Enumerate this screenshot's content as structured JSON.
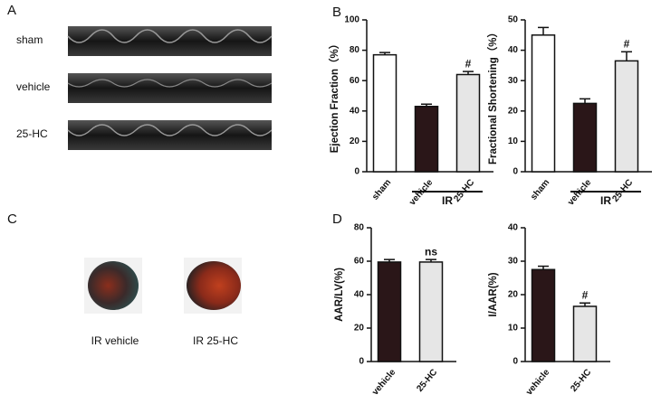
{
  "panel_labels": [
    "A",
    "B",
    "C",
    "D"
  ],
  "echo_labels": [
    "sham",
    "vehicle",
    "25-HC"
  ],
  "heart_labels": [
    "IR vehicle",
    "IR 25-HC"
  ],
  "chart_data": [
    {
      "type": "bar",
      "ylabel": "Ejection Fraction（%）",
      "categories": [
        "sham",
        "vehicle",
        "25-HC"
      ],
      "values": [
        77,
        43,
        64
      ],
      "errors": [
        1.5,
        1.5,
        2
      ],
      "colors": [
        "#ffffff",
        "#2a1618",
        "#e6e6e6"
      ],
      "ylim": [
        0,
        100
      ],
      "yticks": [
        0,
        20,
        40,
        60,
        80,
        100
      ],
      "annotations": [
        null,
        null,
        "#"
      ],
      "group_label": "IR"
    },
    {
      "type": "bar",
      "ylabel": "Fractional Shortening（%）",
      "categories": [
        "sham",
        "vehicle",
        "25-HC"
      ],
      "values": [
        45,
        22.5,
        36.5
      ],
      "errors": [
        2.5,
        1.5,
        3
      ],
      "colors": [
        "#ffffff",
        "#2a1618",
        "#e6e6e6"
      ],
      "ylim": [
        0,
        50
      ],
      "yticks": [
        0,
        10,
        20,
        30,
        40,
        50
      ],
      "annotations": [
        null,
        null,
        "#"
      ],
      "group_label": "IR"
    },
    {
      "type": "bar",
      "ylabel": "AAR/LV(%)",
      "categories": [
        "vehicle",
        "25-HC"
      ],
      "values": [
        59.5,
        59.5
      ],
      "errors": [
        1.5,
        1.5
      ],
      "colors": [
        "#2a1618",
        "#e6e6e6"
      ],
      "ylim": [
        0,
        80
      ],
      "yticks": [
        0,
        20,
        40,
        60,
        80
      ],
      "annotations": [
        null,
        "ns"
      ]
    },
    {
      "type": "bar",
      "ylabel": "I/AAR(%)",
      "categories": [
        "vehicle",
        "25-HC"
      ],
      "values": [
        27.5,
        16.5
      ],
      "errors": [
        1,
        1
      ],
      "colors": [
        "#2a1618",
        "#e6e6e6"
      ],
      "ylim": [
        0,
        40
      ],
      "yticks": [
        0,
        10,
        20,
        30,
        40
      ],
      "annotations": [
        null,
        "#"
      ]
    }
  ]
}
